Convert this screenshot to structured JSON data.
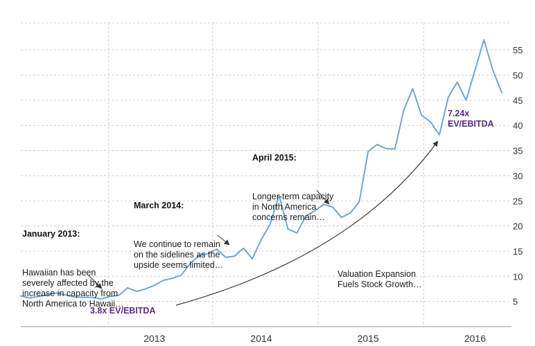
{
  "chart_data": {
    "type": "line",
    "title": "",
    "xlabel": "",
    "ylabel": "",
    "ylim": [
      0,
      60
    ],
    "x_ticks": [
      "2013",
      "2014",
      "2015",
      "2016"
    ],
    "y_ticks": [
      5,
      10,
      15,
      20,
      25,
      30,
      35,
      40,
      45,
      50,
      55
    ],
    "grid": true,
    "series_color": "#6ea6d3",
    "x_range": [
      "2012-04",
      "2016-10"
    ],
    "x": [
      "2012-04",
      "2012-05",
      "2012-06",
      "2012-08",
      "2012-10",
      "2012-11",
      "2012-12",
      "2013-01",
      "2013-02",
      "2013-03",
      "2013-04",
      "2013-05",
      "2013-06",
      "2013-07",
      "2013-08",
      "2013-09",
      "2013-10",
      "2013-11",
      "2013-12",
      "2014-01",
      "2014-02",
      "2014-03",
      "2014-04",
      "2014-05",
      "2014-06",
      "2014-07",
      "2014-08",
      "2014-09",
      "2014-10",
      "2014-11",
      "2014-12",
      "2015-01",
      "2015-02",
      "2015-03",
      "2015-04",
      "2015-05",
      "2015-06",
      "2015-07",
      "2015-08",
      "2015-09",
      "2015-10",
      "2015-11",
      "2015-12",
      "2016-01",
      "2016-02",
      "2016-03",
      "2016-04",
      "2016-05",
      "2016-06",
      "2016-07",
      "2016-08",
      "2016-09",
      "2016-10"
    ],
    "y": [
      6.1,
      5.7,
      6.0,
      6.7,
      5.9,
      5.8,
      5.8,
      5.5,
      6.0,
      6.2,
      7.7,
      7.0,
      7.5,
      8.2,
      9.2,
      9.6,
      10.2,
      12.5,
      14.1,
      14.5,
      15.4,
      13.8,
      14.0,
      15.6,
      13.5,
      17.3,
      20.4,
      26.1,
      19.4,
      18.6,
      22.0,
      23.0,
      24.3,
      23.8,
      21.7,
      22.6,
      24.8,
      34.8,
      36.2,
      35.4,
      35.3,
      43.0,
      47.3,
      42.0,
      40.7,
      38.1,
      45.6,
      48.6,
      45.0,
      51.0,
      57.0,
      51.0,
      46.5
    ],
    "annotations": [
      {
        "title": "January 2013:",
        "body": "Hawaiian has been\nseverely affected by the\nincrease in capacity from\nNorth America to Hawaii…"
      },
      {
        "title": "March 2014:",
        "body": "We continue to remain\non the sidelines as the\nupside seems limited…"
      },
      {
        "title": "April 2015:",
        "body": "Longer-term capacity\nin North America\nconcerns remain…"
      },
      {
        "title": "Valuation Expansion\nFuels Stock Growth…",
        "body": ""
      }
    ],
    "multiple_labels": [
      "3.8x EV/EBITDA",
      "7.24x\nEV/EBITDA"
    ]
  }
}
